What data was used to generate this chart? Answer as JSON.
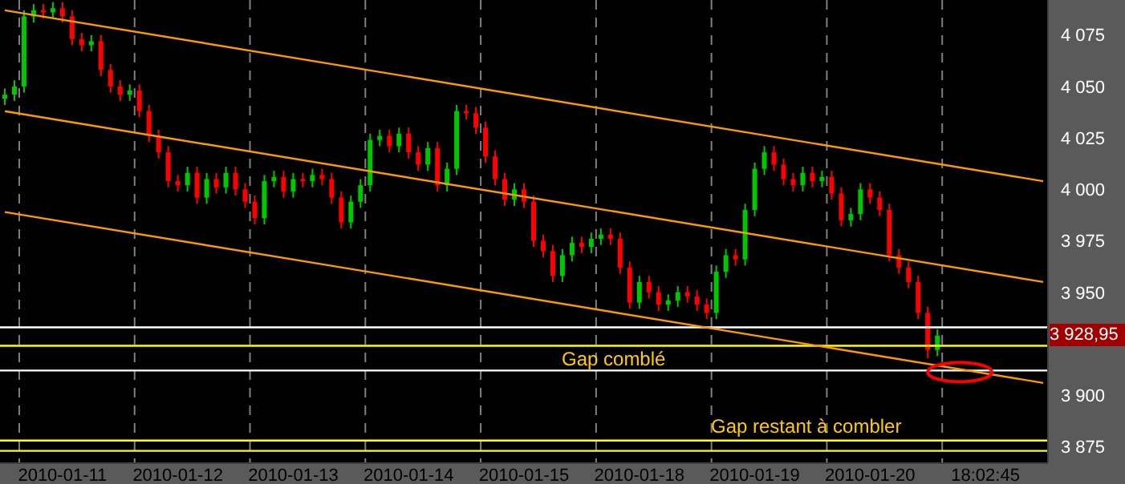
{
  "chart_data": {
    "type": "candlestick",
    "categories": [
      null,
      null,
      null,
      null,
      null,
      null,
      "2010-01-11",
      null,
      null,
      null,
      null,
      null,
      null,
      null,
      null,
      null,
      null,
      null,
      "2010-01-12",
      null,
      null,
      null,
      null,
      null,
      null,
      null,
      null,
      null,
      null,
      null,
      "2010-01-13",
      null,
      null,
      null,
      null,
      null,
      null,
      null,
      null,
      null,
      null,
      null,
      "2010-01-14",
      null,
      null,
      null,
      null,
      null,
      null,
      null,
      null,
      null,
      null,
      null,
      "2010-01-15",
      null,
      null,
      null,
      null,
      null,
      null,
      null,
      null,
      null,
      null,
      null,
      "2010-01-18",
      null,
      null,
      null,
      null,
      null,
      null,
      null,
      null,
      null,
      null,
      null,
      "2010-01-19",
      null,
      null,
      null,
      null,
      null,
      null,
      null,
      null,
      null,
      null,
      null,
      "2010-01-20",
      null,
      null,
      null,
      null,
      null,
      null,
      null,
      null,
      null,
      null,
      null,
      "18:02:45",
      null,
      null,
      null,
      null,
      null,
      null
    ],
    "ohlc": [
      [
        4044,
        4049,
        4041,
        4046
      ],
      [
        4046,
        4053,
        4043,
        4050
      ],
      [
        4050,
        4087,
        4047,
        4084
      ],
      [
        4084,
        4090,
        4081,
        4087
      ],
      [
        4087,
        4090,
        4083,
        4086
      ],
      [
        4086,
        4091,
        4083,
        4088
      ],
      [
        4088,
        4091,
        4081,
        4084
      ],
      [
        4084,
        4087,
        4070,
        4073
      ],
      [
        4073,
        4076,
        4067,
        4070
      ],
      [
        4070,
        4075,
        4067,
        4072
      ],
      [
        4072,
        4075,
        4055,
        4058
      ],
      [
        4058,
        4061,
        4047,
        4050
      ],
      [
        4050,
        4053,
        4043,
        4046
      ],
      [
        4046,
        4051,
        4043,
        4048
      ],
      [
        4048,
        4051,
        4035,
        4038
      ],
      [
        4038,
        4041,
        4023,
        4026
      ],
      [
        4026,
        4029,
        4015,
        4018
      ],
      [
        4018,
        4021,
        4001,
        4004
      ],
      [
        4004,
        4007,
        3999,
        4002
      ],
      [
        4002,
        4011,
        3999,
        4008
      ],
      [
        4008,
        4011,
        3993,
        3996
      ],
      [
        3996,
        4008,
        3993,
        4005
      ],
      [
        4005,
        4008,
        3998,
        4001
      ],
      [
        4001,
        4011,
        3998,
        4008
      ],
      [
        4008,
        4011,
        3997,
        4000
      ],
      [
        4000,
        4003,
        3991,
        3994
      ],
      [
        3994,
        3997,
        3983,
        3986
      ],
      [
        3986,
        4007,
        3983,
        4004
      ],
      [
        4004,
        4009,
        4001,
        4006
      ],
      [
        4006,
        4009,
        3996,
        3999
      ],
      [
        3999,
        4008,
        3996,
        4005
      ],
      [
        4005,
        4008,
        4001,
        4004
      ],
      [
        4004,
        4010,
        4001,
        4007
      ],
      [
        4007,
        4010,
        4002,
        4005
      ],
      [
        4005,
        4008,
        3993,
        3996
      ],
      [
        3996,
        3999,
        3981,
        3984
      ],
      [
        3984,
        3997,
        3981,
        3994
      ],
      [
        3994,
        4005,
        3991,
        4002
      ],
      [
        4002,
        4027,
        3999,
        4024
      ],
      [
        4024,
        4029,
        4021,
        4026
      ],
      [
        4026,
        4029,
        4018,
        4021
      ],
      [
        4021,
        4030,
        4018,
        4027
      ],
      [
        4027,
        4030,
        4015,
        4018
      ],
      [
        4018,
        4021,
        4009,
        4012
      ],
      [
        4012,
        4023,
        4009,
        4020
      ],
      [
        4020,
        4023,
        3999,
        4002
      ],
      [
        4002,
        4013,
        3999,
        4010
      ],
      [
        4010,
        4041,
        4007,
        4038
      ],
      [
        4038,
        4041,
        4034,
        4037
      ],
      [
        4037,
        4040,
        4027,
        4030
      ],
      [
        4030,
        4033,
        4013,
        4016
      ],
      [
        4016,
        4019,
        4002,
        4005
      ],
      [
        4005,
        4008,
        3992,
        3995
      ],
      [
        3995,
        4003,
        3992,
        4000
      ],
      [
        4000,
        4003,
        3991,
        3994
      ],
      [
        3994,
        3997,
        3972,
        3975
      ],
      [
        3975,
        3978,
        3967,
        3970
      ],
      [
        3970,
        3973,
        3955,
        3958
      ],
      [
        3958,
        3971,
        3955,
        3968
      ],
      [
        3968,
        3977,
        3965,
        3974
      ],
      [
        3974,
        3977,
        3969,
        3972
      ],
      [
        3972,
        3979,
        3969,
        3976
      ],
      [
        3976,
        3981,
        3973,
        3978
      ],
      [
        3978,
        3981,
        3973,
        3976
      ],
      [
        3976,
        3979,
        3959,
        3962
      ],
      [
        3962,
        3965,
        3942,
        3945
      ],
      [
        3945,
        3958,
        3942,
        3955
      ],
      [
        3955,
        3958,
        3947,
        3950
      ],
      [
        3950,
        3953,
        3941,
        3944
      ],
      [
        3944,
        3949,
        3941,
        3946
      ],
      [
        3946,
        3953,
        3943,
        3950
      ],
      [
        3950,
        3953,
        3945,
        3948
      ],
      [
        3948,
        3951,
        3941,
        3944
      ],
      [
        3944,
        3947,
        3937,
        3940
      ],
      [
        3940,
        3963,
        3937,
        3960
      ],
      [
        3960,
        3971,
        3957,
        3968
      ],
      [
        3968,
        3971,
        3963,
        3966
      ],
      [
        3966,
        3993,
        3963,
        3990
      ],
      [
        3990,
        4013,
        3987,
        4010
      ],
      [
        4010,
        4021,
        4007,
        4018
      ],
      [
        4018,
        4021,
        4009,
        4012
      ],
      [
        4012,
        4015,
        4002,
        4005
      ],
      [
        4005,
        4008,
        3999,
        4002
      ],
      [
        4002,
        4011,
        3999,
        4008
      ],
      [
        4008,
        4011,
        4001,
        4004
      ],
      [
        4004,
        4009,
        4001,
        4006
      ],
      [
        4006,
        4009,
        3995,
        3998
      ],
      [
        3998,
        4001,
        3982,
        3985
      ],
      [
        3985,
        3991,
        3982,
        3988
      ],
      [
        3988,
        4003,
        3985,
        4000
      ],
      [
        4000,
        4003,
        3993,
        3996
      ],
      [
        3996,
        3999,
        3987,
        3990
      ],
      [
        3990,
        3993,
        3965,
        3968
      ],
      [
        3968,
        3971,
        3959,
        3962
      ],
      [
        3962,
        3965,
        3952,
        3955
      ],
      [
        3955,
        3958,
        3937,
        3940
      ],
      [
        3940,
        3943,
        3918,
        3922
      ],
      [
        3922,
        3932,
        3919,
        3928.95
      ],
      null,
      null,
      null,
      null,
      null,
      null,
      null,
      null,
      null,
      null,
      null
    ],
    "colors": [
      "#00c800",
      "#00c800",
      "#00c800",
      "#00c800",
      "#ff0000",
      "#00c800",
      "#ff0000",
      "#ff0000",
      "#ff0000",
      "#00c800",
      "#ff0000",
      "#ff0000",
      "#ff0000",
      "#00c800",
      "#ff0000",
      "#ff0000",
      "#ff0000",
      "#ff0000",
      "#ff0000",
      "#00c800",
      "#ff0000",
      "#00c800",
      "#ff0000",
      "#00c800",
      "#ff0000",
      "#ff0000",
      "#ff0000",
      "#00c800",
      "#00c800",
      "#ff0000",
      "#00c800",
      "#ff0000",
      "#00c800",
      "#ff0000",
      "#ff0000",
      "#ff0000",
      "#00c800",
      "#00c800",
      "#00c800",
      "#00c800",
      "#ff0000",
      "#00c800",
      "#ff0000",
      "#ff0000",
      "#00c800",
      "#ff0000",
      "#00c800",
      "#00c800",
      "#ff0000",
      "#ff0000",
      "#ff0000",
      "#ff0000",
      "#ff0000",
      "#00c800",
      "#ff0000",
      "#ff0000",
      "#ff0000",
      "#ff0000",
      "#00c800",
      "#00c800",
      "#ff0000",
      "#00c800",
      "#00c800",
      "#ff0000",
      "#ff0000",
      "#ff0000",
      "#00c800",
      "#ff0000",
      "#ff0000",
      "#00c800",
      "#00c800",
      "#ff0000",
      "#ff0000",
      "#ff0000",
      "#00c800",
      "#00c800",
      "#ff0000",
      "#00c800",
      "#00c800",
      "#00c800",
      "#ff0000",
      "#ff0000",
      "#ff0000",
      "#00c800",
      "#ff0000",
      "#00c800",
      "#ff0000",
      "#ff0000",
      "#00c800",
      "#00c800",
      "#ff0000",
      "#ff0000",
      "#ff0000",
      "#ff0000",
      "#ff0000",
      "#ff0000",
      "#ff0000",
      "#00c800",
      null,
      null,
      null,
      null,
      null,
      null,
      null,
      null,
      null,
      null,
      null
    ],
    "series": [
      {
        "type": "line",
        "color": "#ff9900",
        "values": [
          4087,
          null,
          null,
          null,
          null,
          null,
          null,
          null,
          null,
          null,
          null,
          null,
          null,
          null,
          null,
          null,
          null,
          null,
          null,
          null,
          null,
          null,
          null,
          null,
          null,
          null,
          null,
          null,
          null,
          null,
          null,
          null,
          null,
          null,
          null,
          null,
          null,
          null,
          null,
          null,
          null,
          null,
          null,
          null,
          null,
          null,
          null,
          null,
          null,
          null,
          null,
          null,
          null,
          null,
          null,
          null,
          null,
          null,
          null,
          null,
          null,
          null,
          null,
          null,
          null,
          null,
          null,
          null,
          null,
          null,
          null,
          null,
          null,
          null,
          null,
          null,
          null,
          null,
          null,
          null,
          null,
          null,
          null,
          null,
          null,
          null,
          null,
          null,
          null,
          null,
          null,
          null,
          null,
          null,
          null,
          null,
          null,
          null,
          null,
          null,
          null,
          null,
          null,
          null,
          null,
          null,
          null,
          null,
          4004
        ]
      },
      {
        "type": "line",
        "color": "#ff9900",
        "values": [
          4038,
          null,
          null,
          null,
          null,
          null,
          null,
          null,
          null,
          null,
          null,
          null,
          null,
          null,
          null,
          null,
          null,
          null,
          null,
          null,
          null,
          null,
          null,
          null,
          null,
          null,
          null,
          null,
          null,
          null,
          null,
          null,
          null,
          null,
          null,
          null,
          null,
          null,
          null,
          null,
          null,
          null,
          null,
          null,
          null,
          null,
          null,
          null,
          null,
          null,
          null,
          null,
          null,
          null,
          null,
          null,
          null,
          null,
          null,
          null,
          null,
          null,
          null,
          null,
          null,
          null,
          null,
          null,
          null,
          null,
          null,
          null,
          null,
          null,
          null,
          null,
          null,
          null,
          null,
          null,
          null,
          null,
          null,
          null,
          null,
          null,
          null,
          null,
          null,
          null,
          null,
          null,
          null,
          null,
          null,
          null,
          null,
          null,
          null,
          null,
          null,
          null,
          null,
          null,
          null,
          null,
          null,
          null,
          3955
        ]
      },
      {
        "type": "line",
        "color": "#ff9900",
        "values": [
          3989,
          null,
          null,
          null,
          null,
          null,
          null,
          null,
          null,
          null,
          null,
          null,
          null,
          null,
          null,
          null,
          null,
          null,
          null,
          null,
          null,
          null,
          null,
          null,
          null,
          null,
          null,
          null,
          null,
          null,
          null,
          null,
          null,
          null,
          null,
          null,
          null,
          null,
          null,
          null,
          null,
          null,
          null,
          null,
          null,
          null,
          null,
          null,
          null,
          null,
          null,
          null,
          null,
          null,
          null,
          null,
          null,
          null,
          null,
          null,
          null,
          null,
          null,
          null,
          null,
          null,
          null,
          null,
          null,
          null,
          null,
          null,
          null,
          null,
          null,
          null,
          null,
          null,
          null,
          null,
          null,
          null,
          null,
          null,
          null,
          null,
          null,
          null,
          null,
          null,
          null,
          null,
          null,
          null,
          null,
          null,
          null,
          null,
          null,
          null,
          null,
          null,
          null,
          null,
          null,
          null,
          null,
          null,
          3906
        ]
      }
    ],
    "ylim": [
      3867,
      4092
    ],
    "yticks": [
      {
        "value": 3875,
        "label": "3 875"
      },
      {
        "value": 3900,
        "label": "3 900"
      },
      {
        "value": 3950,
        "label": "3 950"
      },
      {
        "value": 3975,
        "label": "3 975"
      },
      {
        "value": 4000,
        "label": "4 000"
      },
      {
        "value": 4025,
        "label": "4 025"
      },
      {
        "value": 4050,
        "label": "4 050"
      },
      {
        "value": 4075,
        "label": "4 075"
      }
    ],
    "ref_lines": [
      {
        "axis": "y",
        "value": 3933,
        "color": "#ffffff"
      },
      {
        "axis": "y",
        "value": 3924,
        "color": "#ffff00"
      },
      {
        "axis": "y",
        "value": 3912,
        "color": "#ffffff"
      },
      {
        "axis": "y",
        "value": 3878,
        "color": "#ffff00"
      },
      {
        "axis": "y",
        "value": 3873,
        "color": "#ffff00"
      }
    ],
    "annotations": [
      "Gap comblé",
      "Gap restant à combler",
      "3 928,95"
    ],
    "grid": "x"
  }
}
